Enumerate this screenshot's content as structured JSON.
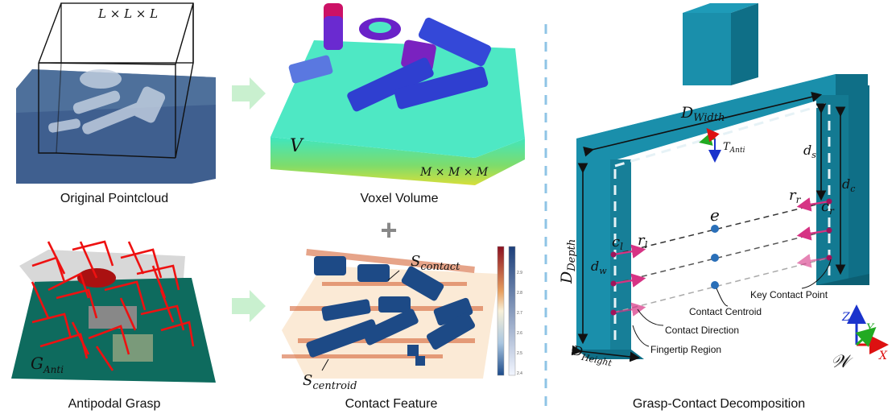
{
  "captions": {
    "pointcloud": "Original Pointcloud",
    "voxel": "Voxel Volume",
    "grasp": "Antipodal Grasp",
    "feature": "Contact Feature",
    "decomposition": "Grasp-Contact Decomposition"
  },
  "math": {
    "cube_size": "L × L × L",
    "volume_symbol": "V",
    "volume_size": "M × M × M",
    "grasp_base": "G",
    "grasp_sub": "Anti",
    "contact_base": "S",
    "contact_sub": "contact",
    "centroid_base": "S",
    "centroid_sub": "centroid",
    "width_base": "D",
    "width_sub": "Width",
    "depth_base": "D",
    "depth_sub": "Depth",
    "height_base": "D",
    "height_sub": "Height",
    "t_base": "T",
    "t_sub": "Anti",
    "ds_base": "d",
    "ds_sub": "s",
    "dc_base": "d",
    "dc_sub": "c",
    "dw_base": "d",
    "dw_sub": "w",
    "cl_base": "c",
    "cl_sub": "l",
    "rl_base": "r",
    "rl_sub": "l",
    "cr_base": "c",
    "cr_sub": "r",
    "rr_base": "r",
    "rr_sub": "r",
    "e": "e",
    "world": "𝒲"
  },
  "annotations": {
    "key_contact_point": "Key Contact Point",
    "contact_centroid": "Contact Centroid",
    "contact_direction": "Contact Direction",
    "fingertip_region": "Fingertip Region"
  },
  "axes": {
    "x": "X",
    "y": "Y",
    "z": "Z"
  },
  "colorbar_ticks": [
    "2.9",
    "2.8",
    "2.7",
    "2.6",
    "2.5",
    "2.4"
  ],
  "plus": "+",
  "colors": {
    "gripper": "#1a8fab",
    "gripper_dark": "#0f6f87",
    "arrow": "#d63384",
    "centroid_dot": "#2a6fb8",
    "separator": "#8fc4e6",
    "flow_arrow": "#c9f0cf",
    "grasp_red": "#ee1111",
    "voxel_top": "#4ee8c4",
    "voxel_blue": "#2f3fd0"
  }
}
